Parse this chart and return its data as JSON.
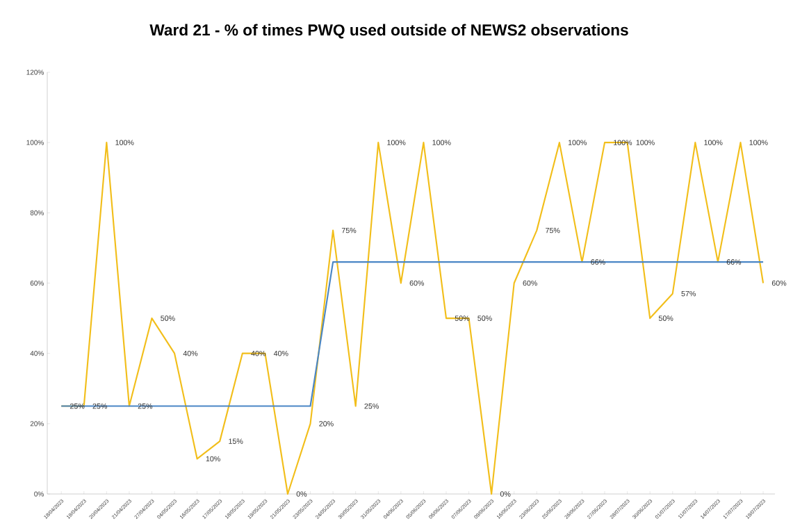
{
  "chart_data": {
    "type": "line",
    "title": "Ward 21 - % of times PWQ used outside of NEWS2 observations",
    "categories": [
      "18/04/2023",
      "19/04/2023",
      "20/04/2023",
      "21/04/2023",
      "27/04/2023",
      "04/05/2023",
      "16/05/2023",
      "17/05/2023",
      "18/05/2023",
      "19/05/2023",
      "21/05/2023",
      "23/05/2023",
      "24/05/2023",
      "30/05/2023",
      "31/05/2023",
      "04/06/2023",
      "05/06/2023",
      "06/06/2023",
      "07/06/2023",
      "09/06/2023",
      "16/06/2023",
      "23/06/2023",
      "25/06/2023",
      "26/06/2023",
      "27/06/2023",
      "28/07/2023",
      "30/06/2023",
      "01/07/2023",
      "11/07/2023",
      "14/07/2023",
      "17/07/2023",
      "19/07/2023"
    ],
    "series": [
      {
        "color": "#f2be1a",
        "values": [
          25,
          25,
          100,
          25,
          50,
          40,
          10,
          15,
          40,
          40,
          0,
          20,
          75,
          25,
          100,
          60,
          100,
          50,
          50,
          0,
          60,
          75,
          100,
          66,
          100,
          100,
          50,
          57,
          100,
          66,
          100,
          60
        ],
        "value_labels": [
          "25%",
          "25%",
          "100%",
          "25%",
          "50%",
          "40%",
          "10%",
          "15%",
          "40%",
          "40%",
          "0%",
          "20%",
          "75%",
          "25%",
          "100%",
          "60%",
          "100%",
          "50%",
          "50%",
          "0%",
          "60%",
          "75%",
          "100%",
          "66%",
          "100%",
          "100%",
          "50%",
          "57%",
          "100%",
          "66%",
          "100%",
          "60%"
        ]
      },
      {
        "color": "#4a86c5",
        "values": [
          25,
          25,
          25,
          25,
          25,
          25,
          25,
          25,
          25,
          25,
          25,
          25,
          66,
          66,
          66,
          66,
          66,
          66,
          66,
          66,
          66,
          66,
          66,
          66,
          66,
          66,
          66,
          66,
          66,
          66,
          66,
          66
        ]
      }
    ],
    "ylim": [
      0,
      120
    ],
    "yticks": [
      {
        "value": 0,
        "label": "0%"
      },
      {
        "value": 20,
        "label": "20%"
      },
      {
        "value": 40,
        "label": "40%"
      },
      {
        "value": 60,
        "label": "60%"
      },
      {
        "value": 80,
        "label": "80%"
      },
      {
        "value": 100,
        "label": "100%"
      },
      {
        "value": 120,
        "label": "120%"
      }
    ],
    "line_style": "solid"
  }
}
